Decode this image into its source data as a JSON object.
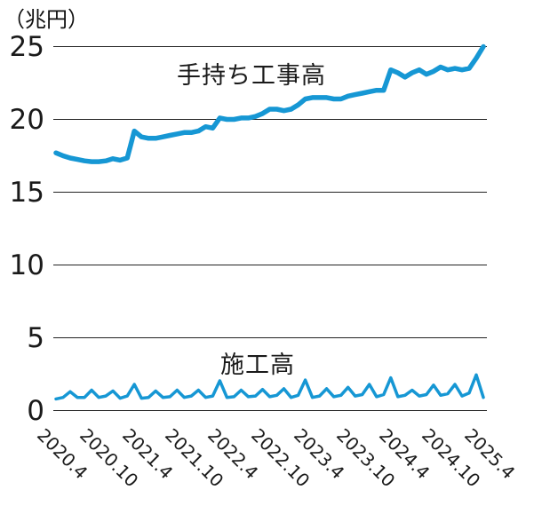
{
  "chart_data": {
    "type": "line",
    "title": "",
    "unit_label": "（兆円）",
    "xlabel": "",
    "ylabel": "兆円",
    "ylim": [
      0,
      25
    ],
    "y_ticks": [
      0,
      5,
      10,
      15,
      20,
      25
    ],
    "grid": "horizontal",
    "legend_position": "inline-annotations",
    "x_tick_labels": [
      "2020.4",
      "2020.10",
      "2021.4",
      "2021.10",
      "2022.4",
      "2022.10",
      "2023.4",
      "2023.10",
      "2024.4",
      "2024.10",
      "2025.4"
    ],
    "x": [
      "2020.4",
      "2020.5",
      "2020.6",
      "2020.7",
      "2020.8",
      "2020.9",
      "2020.10",
      "2020.11",
      "2020.12",
      "2021.1",
      "2021.2",
      "2021.3",
      "2021.4",
      "2021.5",
      "2021.6",
      "2021.7",
      "2021.8",
      "2021.9",
      "2021.10",
      "2021.11",
      "2021.12",
      "2022.1",
      "2022.2",
      "2022.3",
      "2022.4",
      "2022.5",
      "2022.6",
      "2022.7",
      "2022.8",
      "2022.9",
      "2022.10",
      "2022.11",
      "2022.12",
      "2023.1",
      "2023.2",
      "2023.3",
      "2023.4",
      "2023.5",
      "2023.6",
      "2023.7",
      "2023.8",
      "2023.9",
      "2023.10",
      "2023.11",
      "2023.12",
      "2024.1",
      "2024.2",
      "2024.3",
      "2024.4",
      "2024.5",
      "2024.6",
      "2024.7",
      "2024.8",
      "2024.9",
      "2024.10",
      "2024.11",
      "2024.12",
      "2025.1",
      "2025.2",
      "2025.3",
      "2025.4"
    ],
    "series": [
      {
        "name": "手持ち工事高",
        "line_width": 5.5,
        "values": [
          17.7,
          17.5,
          17.35,
          17.25,
          17.15,
          17.1,
          17.1,
          17.15,
          17.3,
          17.2,
          17.35,
          19.2,
          18.8,
          18.7,
          18.7,
          18.8,
          18.9,
          19.0,
          19.1,
          19.1,
          19.2,
          19.5,
          19.4,
          20.1,
          20.0,
          20.0,
          20.1,
          20.1,
          20.2,
          20.4,
          20.7,
          20.7,
          20.6,
          20.7,
          21.0,
          21.4,
          21.5,
          21.5,
          21.5,
          21.4,
          21.4,
          21.6,
          21.7,
          21.8,
          21.9,
          22.0,
          22.0,
          23.4,
          23.2,
          22.9,
          23.2,
          23.4,
          23.1,
          23.3,
          23.6,
          23.4,
          23.5,
          23.4,
          23.5,
          24.2,
          25.0
        ]
      },
      {
        "name": "施工高",
        "line_width": 3.5,
        "values": [
          0.8,
          0.9,
          1.3,
          0.9,
          0.9,
          1.4,
          0.9,
          1.0,
          1.35,
          0.85,
          1.0,
          1.8,
          0.85,
          0.9,
          1.35,
          0.9,
          0.95,
          1.4,
          0.9,
          1.0,
          1.4,
          0.9,
          1.0,
          2.05,
          0.9,
          0.95,
          1.4,
          0.95,
          1.0,
          1.45,
          0.95,
          1.05,
          1.5,
          0.9,
          1.05,
          2.1,
          0.9,
          1.0,
          1.5,
          0.95,
          1.05,
          1.6,
          1.0,
          1.1,
          1.8,
          0.95,
          1.1,
          2.25,
          0.95,
          1.05,
          1.4,
          1.0,
          1.1,
          1.75,
          1.05,
          1.15,
          1.8,
          1.0,
          1.2,
          2.45,
          0.9
        ]
      }
    ],
    "colors": {
      "line": "#1697d4",
      "grid": "#222222",
      "text": "#1a1a1a",
      "background": "#ffffff"
    }
  }
}
